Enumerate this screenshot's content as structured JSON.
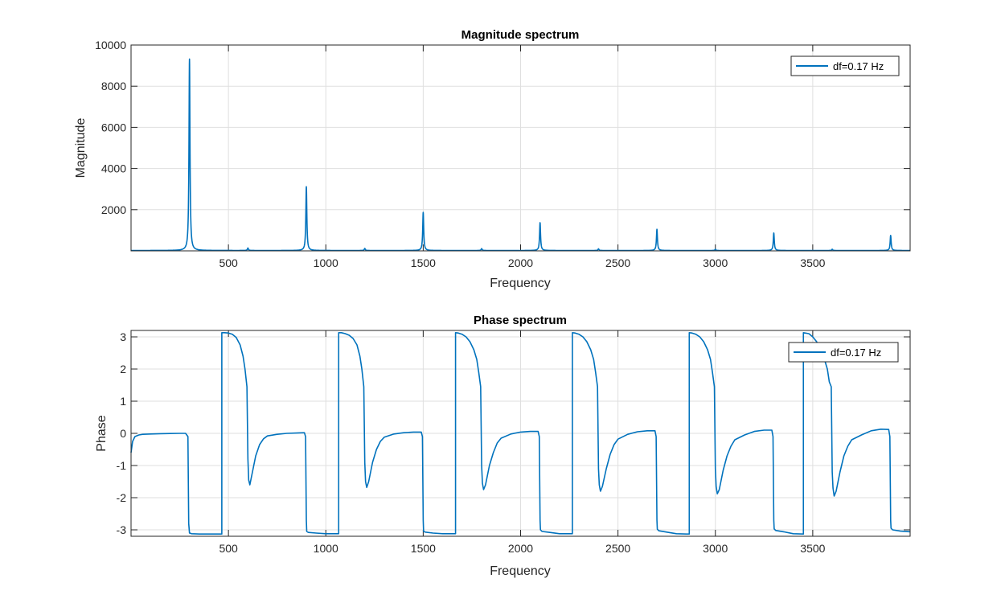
{
  "chart_data": [
    {
      "type": "line",
      "title": "Magnitude spectrum",
      "xlabel": "Frequency",
      "ylabel": "Magnitude",
      "xlim": [
        0,
        4000
      ],
      "ylim": [
        0,
        10000
      ],
      "xticks": [
        500,
        1000,
        1500,
        2000,
        2500,
        3000,
        3500
      ],
      "yticks": [
        2000,
        4000,
        6000,
        8000,
        10000
      ],
      "grid": true,
      "legend_position": "top-right",
      "series": [
        {
          "name": "df=0.17 Hz",
          "color": "#0072bd",
          "peaks": [
            {
              "x": 300,
              "y": 9300
            },
            {
              "x": 600,
              "y": 120
            },
            {
              "x": 900,
              "y": 3100
            },
            {
              "x": 1200,
              "y": 100
            },
            {
              "x": 1500,
              "y": 1850
            },
            {
              "x": 1800,
              "y": 90
            },
            {
              "x": 2100,
              "y": 1350
            },
            {
              "x": 2400,
              "y": 80
            },
            {
              "x": 2700,
              "y": 1030
            },
            {
              "x": 3000,
              "y": 60
            },
            {
              "x": 3300,
              "y": 850
            },
            {
              "x": 3600,
              "y": 60
            },
            {
              "x": 3900,
              "y": 730
            }
          ]
        }
      ]
    },
    {
      "type": "line",
      "title": "Phase spectrum",
      "xlabel": "Frequency",
      "ylabel": "Phase",
      "xlim": [
        0,
        4000
      ],
      "ylim": [
        -3.2,
        3.2
      ],
      "xticks": [
        500,
        1000,
        1500,
        2000,
        2500,
        3000,
        3500
      ],
      "yticks": [
        -3,
        -2,
        -1,
        0,
        1,
        2,
        3
      ],
      "grid": true,
      "legend_position": "top-right",
      "series": [
        {
          "name": "df=0.17 Hz",
          "color": "#0072bd",
          "x": [
            0,
            8,
            20,
            40,
            60,
            100,
            150,
            200,
            250,
            280,
            292,
            296,
            300,
            302,
            310,
            350,
            400,
            450,
            466,
            466.01,
            480,
            500,
            520,
            540,
            560,
            575,
            585,
            595,
            600,
            604,
            610,
            620,
            640,
            660,
            680,
            700,
            750,
            800,
            850,
            890,
            896,
            900,
            902,
            910,
            950,
            1000,
            1050,
            1066,
            1066.01,
            1080,
            1100,
            1120,
            1140,
            1160,
            1175,
            1185,
            1195,
            1200,
            1204,
            1210,
            1220,
            1240,
            1260,
            1280,
            1300,
            1350,
            1400,
            1450,
            1490,
            1496,
            1500,
            1502,
            1510,
            1550,
            1600,
            1650,
            1666,
            1666.01,
            1680,
            1700,
            1720,
            1740,
            1760,
            1775,
            1785,
            1795,
            1800,
            1804,
            1810,
            1820,
            1840,
            1860,
            1880,
            1900,
            1950,
            2000,
            2050,
            2090,
            2096,
            2100,
            2102,
            2110,
            2150,
            2200,
            2250,
            2266,
            2266.01,
            2280,
            2300,
            2320,
            2340,
            2360,
            2375,
            2385,
            2395,
            2400,
            2404,
            2410,
            2420,
            2440,
            2460,
            2480,
            2500,
            2550,
            2600,
            2650,
            2690,
            2696,
            2700,
            2702,
            2710,
            2750,
            2800,
            2850,
            2866,
            2866.01,
            2880,
            2900,
            2920,
            2940,
            2960,
            2975,
            2985,
            2995,
            3000,
            3004,
            3010,
            3020,
            3040,
            3060,
            3080,
            3100,
            3150,
            3200,
            3250,
            3290,
            3296,
            3300,
            3302,
            3310,
            3350,
            3400,
            3450,
            3452,
            3452.01,
            3480,
            3500,
            3520,
            3540,
            3560,
            3575,
            3585,
            3595,
            3600,
            3604,
            3610,
            3620,
            3640,
            3660,
            3680,
            3700,
            3750,
            3800,
            3850,
            3890,
            3896,
            3900,
            3902,
            3910,
            3950,
            4000
          ],
          "y": [
            -0.6,
            -0.25,
            -0.1,
            -0.05,
            -0.03,
            -0.02,
            -0.01,
            -0.005,
            0,
            0,
            -0.1,
            -2.8,
            -3.1,
            -3.1,
            -3.12,
            -3.13,
            -3.13,
            -3.13,
            -3.13,
            3.13,
            3.13,
            3.12,
            3.08,
            2.98,
            2.75,
            2.4,
            2.0,
            1.45,
            -0.8,
            -1.45,
            -1.6,
            -1.3,
            -0.7,
            -0.35,
            -0.17,
            -0.08,
            -0.03,
            0,
            0.01,
            0.02,
            -0.1,
            -2.7,
            -3.05,
            -3.08,
            -3.1,
            -3.12,
            -3.12,
            -3.12,
            3.13,
            3.13,
            3.1,
            3.05,
            2.95,
            2.75,
            2.4,
            2.0,
            1.45,
            -0.9,
            -1.5,
            -1.68,
            -1.5,
            -0.9,
            -0.5,
            -0.25,
            -0.12,
            -0.02,
            0.02,
            0.04,
            0.04,
            -0.1,
            -2.7,
            -3.05,
            -3.07,
            -3.1,
            -3.12,
            -3.12,
            -3.12,
            3.13,
            3.12,
            3.08,
            3.0,
            2.85,
            2.6,
            2.3,
            1.9,
            1.45,
            -1.0,
            -1.55,
            -1.75,
            -1.6,
            -1.0,
            -0.6,
            -0.3,
            -0.15,
            -0.02,
            0.04,
            0.06,
            0.06,
            -0.1,
            -2.7,
            -3.0,
            -3.05,
            -3.08,
            -3.12,
            -3.12,
            -3.12,
            3.13,
            3.12,
            3.08,
            3.0,
            2.85,
            2.6,
            2.3,
            1.9,
            1.45,
            -1.1,
            -1.6,
            -1.8,
            -1.65,
            -1.1,
            -0.65,
            -0.35,
            -0.18,
            -0.03,
            0.05,
            0.08,
            0.08,
            -0.1,
            -2.7,
            -2.98,
            -3.03,
            -3.07,
            -3.12,
            -3.13,
            -3.13,
            3.13,
            3.12,
            3.08,
            3.0,
            2.85,
            2.6,
            2.3,
            1.9,
            1.45,
            -1.1,
            -1.65,
            -1.88,
            -1.75,
            -1.15,
            -0.7,
            -0.4,
            -0.2,
            -0.05,
            0.06,
            0.1,
            0.1,
            -0.1,
            -2.7,
            -2.97,
            -3.02,
            -3.06,
            -3.12,
            -3.13,
            -3.13,
            3.13,
            3.1,
            3.0,
            2.85,
            2.65,
            2.3,
            2.0,
            1.6,
            1.45,
            -1.2,
            -1.7,
            -1.95,
            -1.8,
            -1.2,
            -0.7,
            -0.4,
            -0.2,
            -0.05,
            0.08,
            0.13,
            0.12,
            -0.1,
            -2.7,
            -2.95,
            -3.0,
            -3.04,
            -3.06
          ]
        }
      ]
    }
  ]
}
